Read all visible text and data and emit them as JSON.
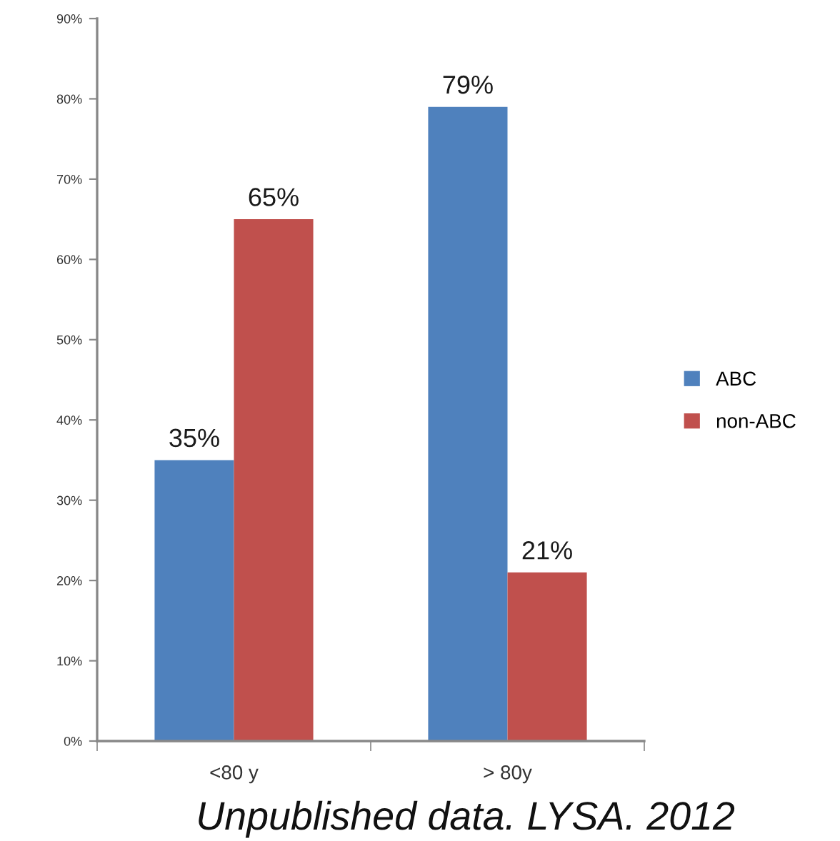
{
  "chart_data": {
    "type": "bar",
    "categories": [
      "<80 y",
      "> 80y"
    ],
    "series": [
      {
        "name": "ABC",
        "color": "#4f81bd",
        "values": [
          35,
          79
        ],
        "value_labels": [
          "35%",
          "79%"
        ]
      },
      {
        "name": "non-ABC",
        "color": "#c0504d",
        "values": [
          65,
          21
        ],
        "value_labels": [
          "65%",
          "21%"
        ]
      }
    ],
    "ylim": [
      0,
      90
    ],
    "yticks": [
      {
        "value": 0,
        "label": "0%"
      },
      {
        "value": 10,
        "label": "10%"
      },
      {
        "value": 20,
        "label": "20%"
      },
      {
        "value": 30,
        "label": "30%"
      },
      {
        "value": 40,
        "label": "40%"
      },
      {
        "value": 50,
        "label": "50%"
      },
      {
        "value": 60,
        "label": "60%"
      },
      {
        "value": 70,
        "label": "70%"
      },
      {
        "value": 80,
        "label": "80%"
      },
      {
        "value": 90,
        "label": "90%"
      }
    ],
    "grid": false,
    "legend": "right",
    "annotations": [
      "Unpublished data. LYSA. 2012"
    ]
  }
}
